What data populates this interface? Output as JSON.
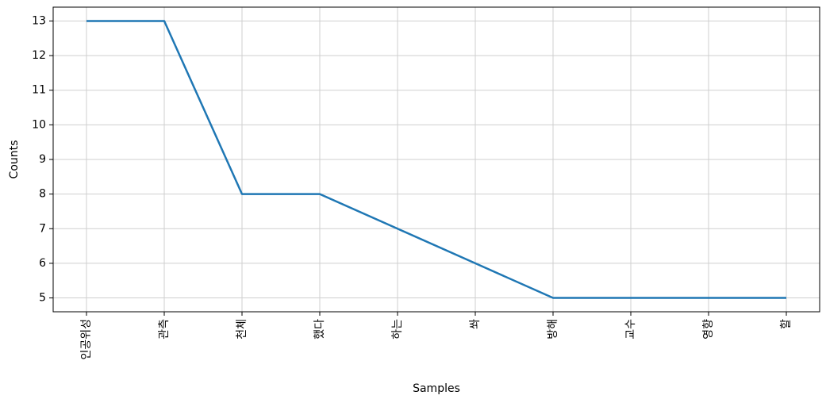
{
  "chart_data": {
    "type": "line",
    "categories": [
      "인공위성",
      "관측",
      "천체",
      "했다",
      "하는",
      "쏴",
      "방해",
      "교수",
      "영향",
      "할"
    ],
    "values": [
      13,
      13,
      8,
      8,
      7,
      6,
      5,
      5,
      5,
      5
    ],
    "color": "#1f77b4",
    "xlabel": "Samples",
    "ylabel": "Counts",
    "ylim": [
      4.6,
      13.4
    ],
    "yticks": [
      5,
      6,
      7,
      8,
      9,
      10,
      11,
      12,
      13
    ],
    "grid": true
  }
}
